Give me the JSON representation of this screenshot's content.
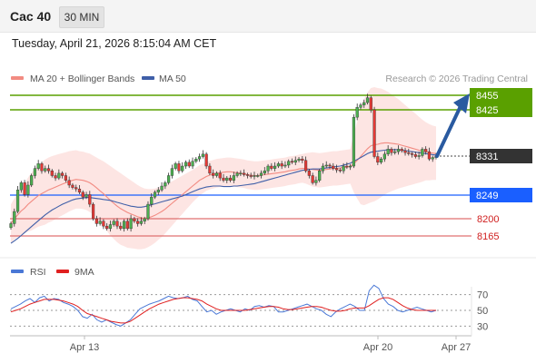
{
  "header": {
    "symbol": "Cac 40",
    "timeframe": "30 MIN",
    "datetime": "Tuesday, April 21, 2026 8:15:04 AM CET"
  },
  "colors": {
    "up": "#4caf50",
    "down": "#e53935",
    "ma20": "#f28b82",
    "band_fill": "#fde0de",
    "ma50": "#3f5fa8",
    "resistance": "#5aa000",
    "support_blue": "#1a5fff",
    "support_red": "#e07070",
    "arrow": "#2a5aa0",
    "rsi": "#4a78d6",
    "rsi_ma": "#e02020"
  },
  "chart_data": [
    {
      "type": "candlestick",
      "legend": [
        {
          "label": "MA 20 + Bollinger Bands",
          "color": "#f28b82"
        },
        {
          "label": "MA 50",
          "color": "#3f5fa8"
        }
      ],
      "watermark": "Research © 2026 Trading Central",
      "ylim": [
        8140,
        8475
      ],
      "current_price": 8331,
      "levels": [
        {
          "value": 8455,
          "label": "8455",
          "kind": "resistance"
        },
        {
          "value": 8425,
          "label": "8425",
          "kind": "resistance"
        },
        {
          "value": 8331,
          "label": "8331",
          "kind": "current"
        },
        {
          "value": 8249,
          "label": "8249",
          "kind": "support"
        },
        {
          "value": 8200,
          "label": "8200",
          "kind": "support-minor"
        },
        {
          "value": 8165,
          "label": "8165",
          "kind": "support-minor"
        }
      ],
      "forecast": {
        "from": 8331,
        "to": 8455,
        "direction": "up"
      },
      "x_ticks": [
        "Apr 13",
        "Apr 20",
        "Apr 27"
      ],
      "closes": [
        8190,
        8215,
        8260,
        8275,
        8250,
        8270,
        8290,
        8305,
        8315,
        8300,
        8305,
        8300,
        8290,
        8285,
        8295,
        8290,
        8280,
        8270,
        8265,
        8262,
        8255,
        8245,
        8250,
        8230,
        8200,
        8190,
        8195,
        8185,
        8180,
        8188,
        8195,
        8185,
        8180,
        8195,
        8180,
        8200,
        8195,
        8190,
        8195,
        8200,
        8230,
        8245,
        8255,
        8260,
        8268,
        8275,
        8290,
        8305,
        8315,
        8300,
        8310,
        8318,
        8310,
        8320,
        8325,
        8330,
        8335,
        8310,
        8295,
        8290,
        8295,
        8285,
        8280,
        8285,
        8280,
        8290,
        8295,
        8295,
        8292,
        8290,
        8288,
        8290,
        8290,
        8295,
        8300,
        8310,
        8305,
        8310,
        8315,
        8310,
        8312,
        8320,
        8318,
        8322,
        8325,
        8322,
        8300,
        8290,
        8275,
        8280,
        8300,
        8310,
        8312,
        8310,
        8305,
        8302,
        8300,
        8310,
        8308,
        8310,
        8410,
        8430,
        8435,
        8440,
        8450,
        8425,
        8330,
        8318,
        8325,
        8335,
        8345,
        8338,
        8340,
        8345,
        8342,
        8338,
        8336,
        8334,
        8330,
        8332,
        8345,
        8340,
        8325,
        8328,
        8331
      ],
      "ma20": [
        8190,
        8200,
        8208,
        8216,
        8222,
        8230,
        8236,
        8242,
        8248,
        8252,
        8256,
        8260,
        8263,
        8266,
        8269,
        8272,
        8275,
        8278,
        8280,
        8282,
        8281,
        8280,
        8278,
        8275,
        8270,
        8264,
        8258,
        8252,
        8245,
        8238,
        8232,
        8226,
        8221,
        8217,
        8213,
        8210,
        8207,
        8204,
        8202,
        8201,
        8202,
        8204,
        8207,
        8211,
        8215,
        8220,
        8226,
        8232,
        8238,
        8244,
        8250,
        8256,
        8262,
        8268,
        8274,
        8280,
        8284,
        8288,
        8291,
        8293,
        8295,
        8296,
        8297,
        8298,
        8298,
        8297,
        8296,
        8295,
        8294,
        8292,
        8291,
        8290,
        8290,
        8291,
        8292,
        8293,
        8294,
        8295,
        8296,
        8297,
        8298,
        8300,
        8301,
        8302,
        8304,
        8305,
        8305,
        8304,
        8303,
        8302,
        8301,
        8302,
        8303,
        8304,
        8305,
        8305,
        8306,
        8307,
        8308,
        8309,
        8315,
        8322,
        8330,
        8338,
        8346,
        8352,
        8354,
        8355,
        8357,
        8358,
        8358,
        8357,
        8356,
        8355,
        8353,
        8351,
        8349,
        8347,
        8345,
        8343,
        8341,
        8340,
        8338,
        8337,
        8336
      ],
      "ma50": [
        8150,
        8155,
        8160,
        8166,
        8172,
        8178,
        8184,
        8190,
        8196,
        8202,
        8208,
        8213,
        8218,
        8222,
        8226,
        8230,
        8233,
        8236,
        8239,
        8241,
        8242,
        8243,
        8244,
        8244,
        8243,
        8242,
        8241,
        8240,
        8239,
        8238,
        8236,
        8234,
        8232,
        8230,
        8228,
        8226,
        8225,
        8224,
        8224,
        8225,
        8227,
        8229,
        8231,
        8233,
        8235,
        8237,
        8239,
        8241,
        8243,
        8245,
        8247,
        8250,
        8253,
        8256,
        8259,
        8262,
        8264,
        8266,
        8267,
        8268,
        8268,
        8268,
        8267,
        8267,
        8267,
        8268,
        8268,
        8269,
        8270,
        8271,
        8272,
        8273,
        8275,
        8277,
        8279,
        8281,
        8283,
        8285,
        8287,
        8289,
        8291,
        8293,
        8295,
        8297,
        8299,
        8301,
        8302,
        8303,
        8304,
        8304,
        8304,
        8305,
        8306,
        8307,
        8308,
        8309,
        8310,
        8312,
        8314,
        8316,
        8320,
        8324,
        8328,
        8332,
        8336,
        8339,
        8340,
        8341,
        8342,
        8343,
        8344,
        8344,
        8344,
        8344,
        8343,
        8342,
        8341,
        8340,
        8339,
        8338,
        8337,
        8336,
        8335,
        8334,
        8333
      ],
      "bb_width": [
        40,
        42,
        45,
        48,
        52,
        56,
        60,
        62,
        64,
        66,
        68,
        68,
        68,
        67,
        66,
        65,
        64,
        63,
        62,
        61,
        60,
        60,
        60,
        61,
        62,
        64,
        66,
        68,
        70,
        72,
        73,
        74,
        74,
        73,
        72,
        70,
        68,
        66,
        64,
        62,
        60,
        58,
        56,
        54,
        52,
        50,
        48,
        46,
        44,
        42,
        40,
        38,
        36,
        34,
        33,
        32,
        31,
        30,
        30,
        30,
        30,
        30,
        30,
        30,
        30,
        30,
        30,
        30,
        30,
        30,
        30,
        30,
        30,
        30,
        30,
        30,
        30,
        30,
        30,
        30,
        30,
        30,
        30,
        30,
        30,
        30,
        32,
        34,
        36,
        36,
        36,
        36,
        36,
        36,
        36,
        36,
        36,
        36,
        36,
        36,
        60,
        80,
        100,
        110,
        115,
        118,
        118,
        115,
        112,
        108,
        104,
        100,
        96,
        92,
        88,
        84,
        80,
        76,
        72,
        68,
        64,
        60,
        58,
        56,
        55
      ]
    },
    {
      "type": "line",
      "legend": [
        {
          "label": "RSI",
          "color": "#4a78d6"
        },
        {
          "label": "9MA",
          "color": "#e02020"
        }
      ],
      "ylim": [
        20,
        80
      ],
      "y_ticks": [
        "70",
        "50",
        "30"
      ],
      "rsi": [
        52,
        55,
        58,
        62,
        65,
        60,
        66,
        68,
        62,
        65,
        64,
        60,
        58,
        55,
        50,
        42,
        40,
        45,
        38,
        35,
        38,
        35,
        32,
        30,
        34,
        38,
        45,
        52,
        55,
        58,
        60,
        62,
        65,
        68,
        66,
        65,
        66,
        68,
        64,
        62,
        55,
        48,
        50,
        45,
        48,
        50,
        52,
        50,
        48,
        52,
        50,
        55,
        56,
        54,
        56,
        55,
        48,
        48,
        50,
        52,
        54,
        56,
        58,
        55,
        52,
        50,
        45,
        42,
        48,
        52,
        55,
        58,
        55,
        50,
        50,
        75,
        82,
        78,
        65,
        58,
        55,
        50,
        48,
        50,
        52,
        54,
        52,
        50,
        48,
        50
      ],
      "ma9": [
        48,
        50,
        52,
        55,
        58,
        60,
        62,
        64,
        64,
        64,
        63,
        62,
        60,
        58,
        55,
        50,
        46,
        44,
        42,
        40,
        38,
        36,
        35,
        34,
        34,
        36,
        40,
        44,
        48,
        52,
        55,
        58,
        60,
        62,
        64,
        65,
        66,
        66,
        65,
        64,
        62,
        58,
        55,
        52,
        50,
        50,
        50,
        50,
        50,
        50,
        51,
        52,
        53,
        54,
        55,
        55,
        54,
        52,
        51,
        51,
        52,
        53,
        54,
        55,
        55,
        54,
        52,
        50,
        49,
        49,
        50,
        52,
        53,
        53,
        53,
        56,
        60,
        64,
        66,
        66,
        64,
        60,
        56,
        53,
        51,
        50,
        50,
        50,
        50,
        50
      ]
    }
  ]
}
